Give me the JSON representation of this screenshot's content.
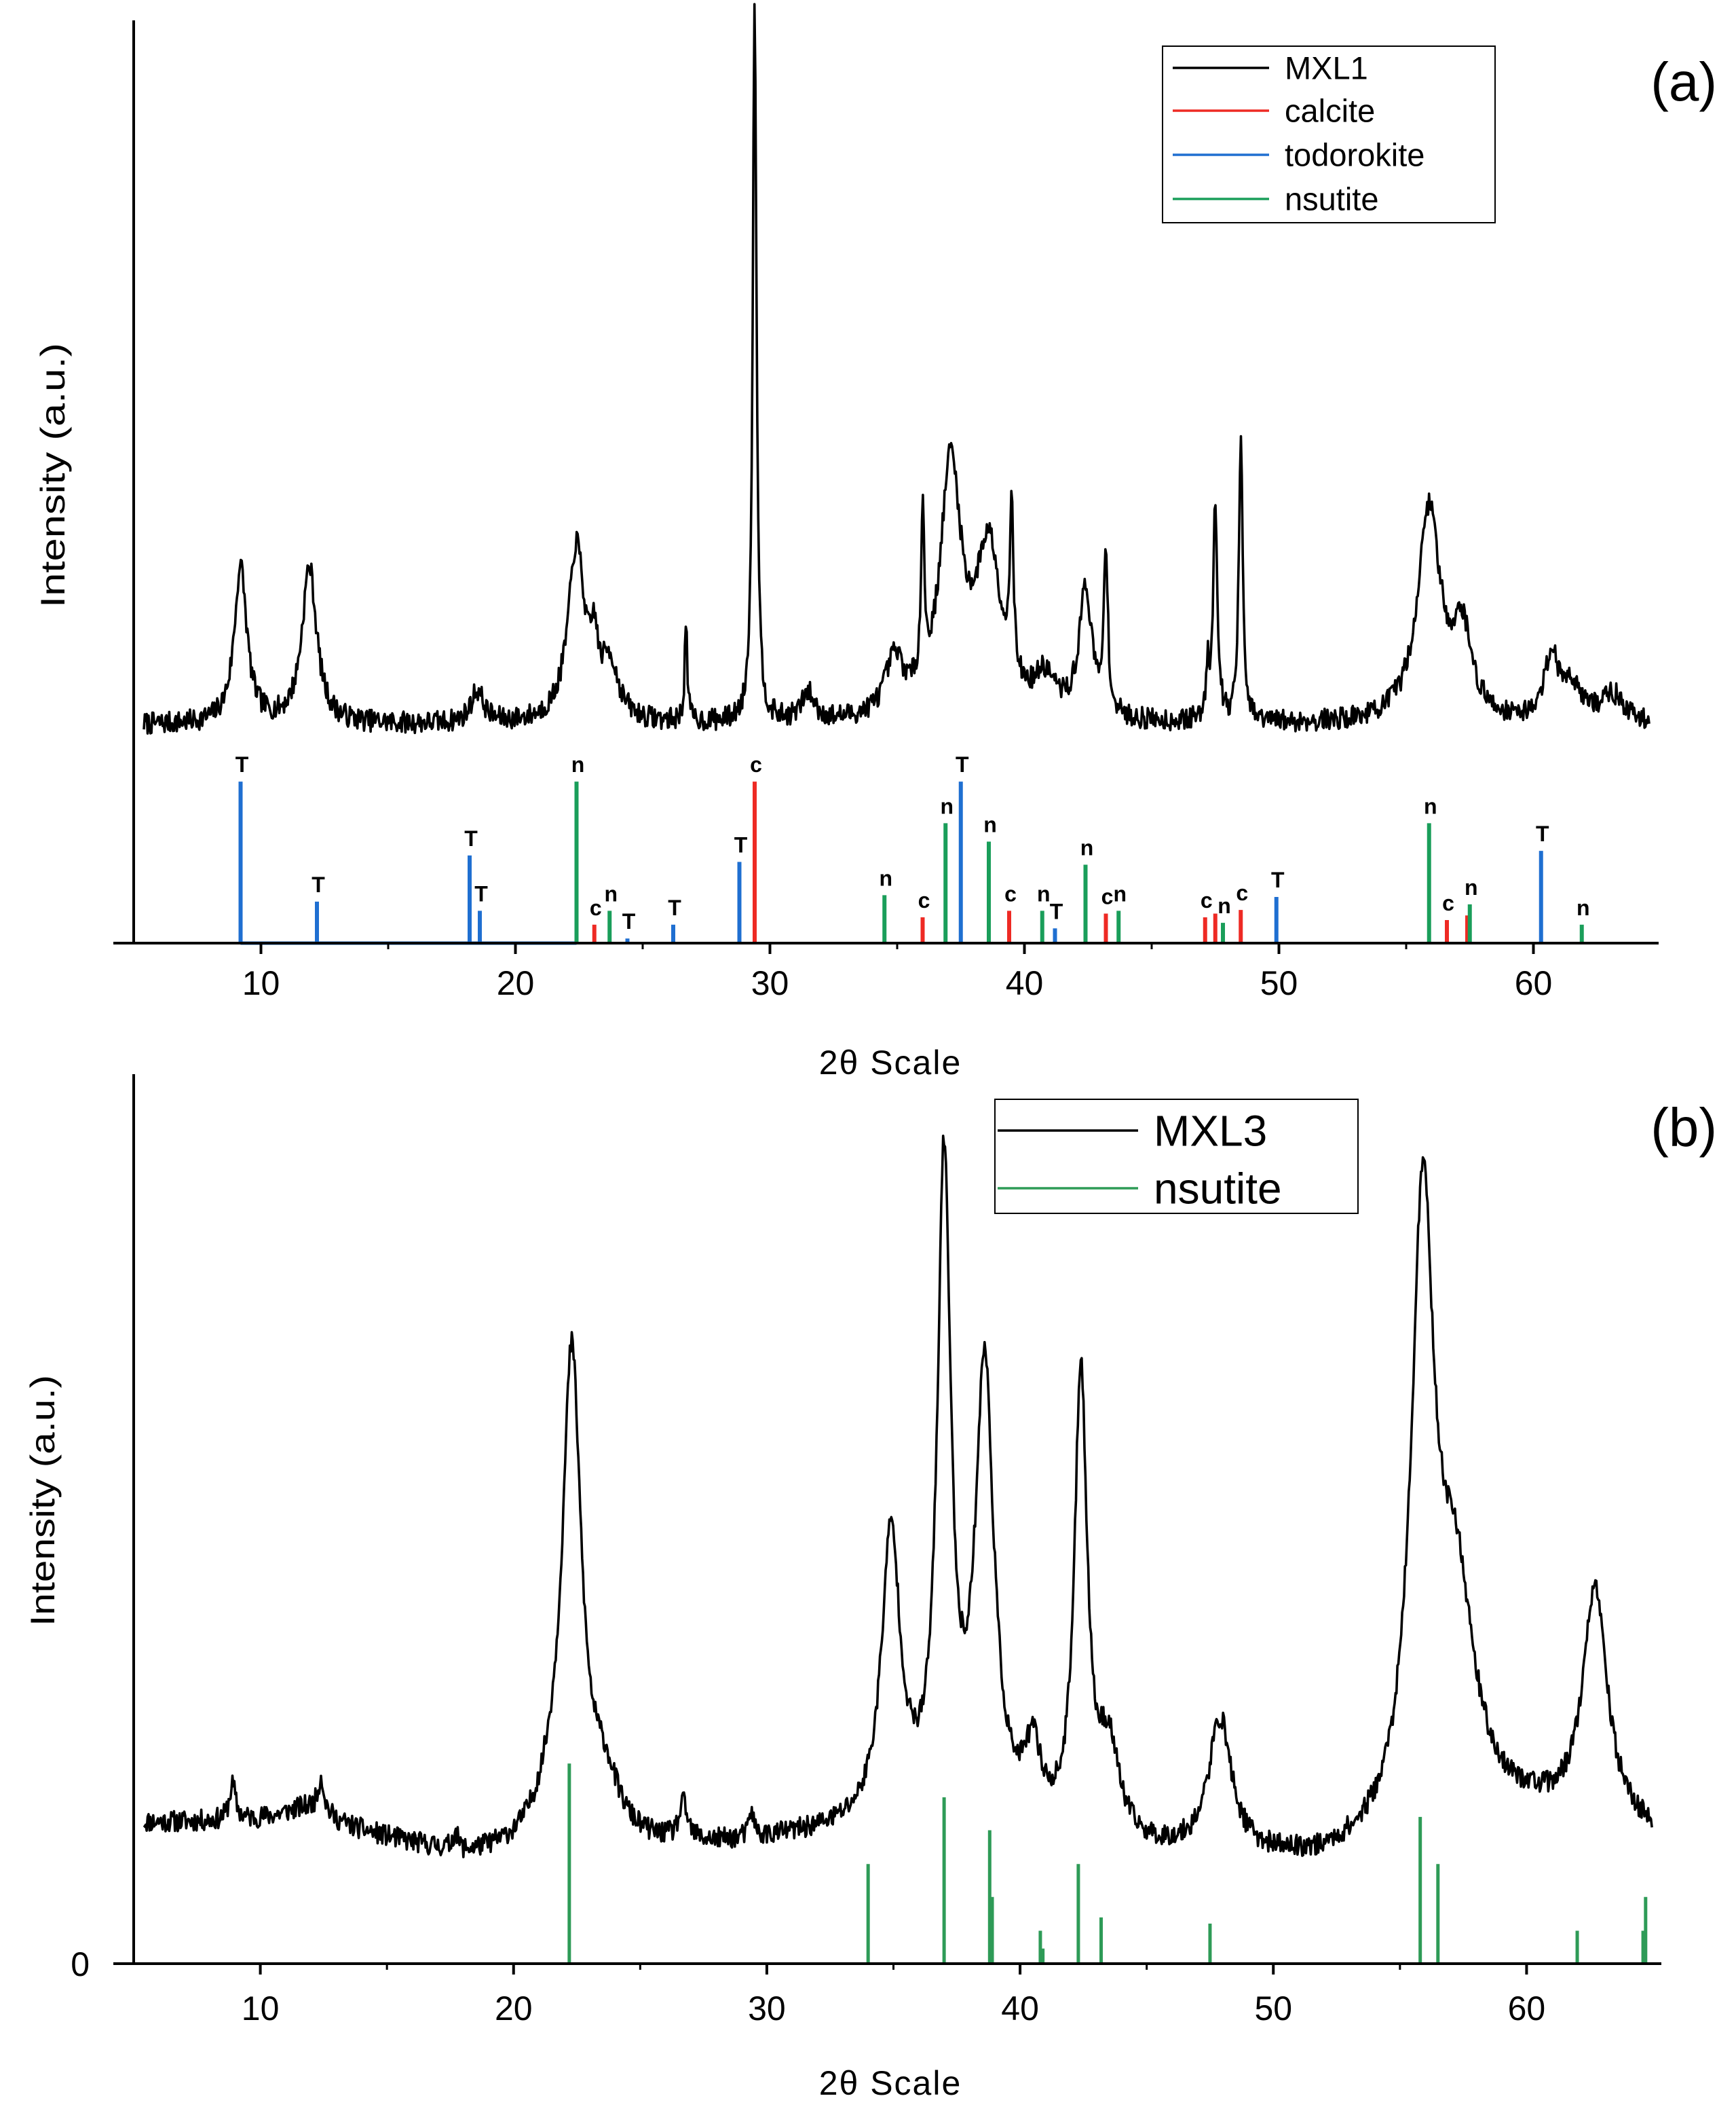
{
  "chart_data": [
    {
      "type": "line",
      "panel_label": "(a)",
      "xlabel": "2θ Scale",
      "ylabel": "Intensity (a.u.)",
      "xlim": [
        5,
        64.6
      ],
      "x_ticks": [
        10,
        20,
        30,
        40,
        50,
        60
      ],
      "ylim": [
        0,
        1
      ],
      "colors": {
        "MXL1": "#000000",
        "calcite": "#ee2a24",
        "todorokite": "#1f6fd1",
        "nsutite": "#1a9e5a"
      },
      "legend": {
        "position": "top-right",
        "entries": [
          "MXL1",
          "calcite",
          "todorokite",
          "nsutite"
        ]
      },
      "series": [
        {
          "name": "MXL1",
          "style": "pattern",
          "baseline": 0.236,
          "noise": 0.012,
          "peaks": [
            {
              "x": 9.2,
              "h": 0.17,
              "w": 0.3
            },
            {
              "x": 11.9,
              "h": 0.17,
              "w": 0.35
            },
            {
              "x": 18.5,
              "h": 0.035,
              "w": 0.3
            },
            {
              "x": 22.4,
              "h": 0.19,
              "w": 0.4
            },
            {
              "x": 23.1,
              "h": 0.06,
              "w": 0.15
            },
            {
              "x": 23.7,
              "h": 0.06,
              "w": 0.4
            },
            {
              "x": 26.7,
              "h": 0.11,
              "w": 0.06
            },
            {
              "x": 29.4,
              "h": 0.78,
              "w": 0.09
            },
            {
              "x": 31.5,
              "h": 0.03,
              "w": 0.3
            },
            {
              "x": 34.9,
              "h": 0.06,
              "w": 0.45
            },
            {
              "x": 36.0,
              "h": 0.18,
              "w": 0.08
            },
            {
              "x": 37.1,
              "h": 0.27,
              "w": 0.5
            },
            {
              "x": 38.6,
              "h": 0.18,
              "w": 0.6
            },
            {
              "x": 39.5,
              "h": 0.19,
              "w": 0.08
            },
            {
              "x": 40.8,
              "h": 0.04,
              "w": 0.5
            },
            {
              "x": 42.4,
              "h": 0.14,
              "w": 0.3
            },
            {
              "x": 43.2,
              "h": 0.18,
              "w": 0.09
            },
            {
              "x": 47.2,
              "h": 0.05,
              "w": 0.08
            },
            {
              "x": 47.5,
              "h": 0.24,
              "w": 0.1
            },
            {
              "x": 48.5,
              "h": 0.31,
              "w": 0.09
            },
            {
              "x": 55.9,
              "h": 0.23,
              "w": 0.55
            },
            {
              "x": 57.2,
              "h": 0.09,
              "w": 0.45
            },
            {
              "x": 60.7,
              "h": 0.07,
              "w": 0.3
            },
            {
              "x": 61.5,
              "h": 0.04,
              "w": 0.5
            },
            {
              "x": 63.1,
              "h": 0.03,
              "w": 0.5
            }
          ]
        },
        {
          "name": "calcite",
          "style": "sticks",
          "sticks": [
            {
              "x": 23.1,
              "h": 0.02,
              "label": "c"
            },
            {
              "x": 29.4,
              "h": 0.175,
              "label": "c"
            },
            {
              "x": 36.0,
              "h": 0.028,
              "label": "c"
            },
            {
              "x": 39.4,
              "h": 0.035,
              "label": "c"
            },
            {
              "x": 43.2,
              "h": 0.032,
              "label": "c"
            },
            {
              "x": 47.1,
              "h": 0.028,
              "label": "c"
            },
            {
              "x": 47.5,
              "h": 0.032,
              "label": ""
            },
            {
              "x": 48.5,
              "h": 0.036,
              "label": "c"
            },
            {
              "x": 56.6,
              "h": 0.025,
              "label": "c"
            },
            {
              "x": 57.4,
              "h": 0.03,
              "label": ""
            }
          ]
        },
        {
          "name": "todorokite",
          "style": "sticks",
          "sticks": [
            {
              "x": 9.2,
              "h": 0.175,
              "label": "T"
            },
            {
              "x": 12.2,
              "h": 0.045,
              "label": "T"
            },
            {
              "x": 18.2,
              "h": 0.095,
              "label": "T"
            },
            {
              "x": 18.6,
              "h": 0.035,
              "label": "T"
            },
            {
              "x": 24.4,
              "h": 0.005,
              "label": "T"
            },
            {
              "x": 26.2,
              "h": 0.02,
              "label": "T"
            },
            {
              "x": 28.8,
              "h": 0.088,
              "label": "T"
            },
            {
              "x": 37.5,
              "h": 0.175,
              "label": "T"
            },
            {
              "x": 41.2,
              "h": 0.016,
              "label": "T"
            },
            {
              "x": 49.9,
              "h": 0.05,
              "label": "T"
            },
            {
              "x": 60.3,
              "h": 0.1,
              "label": "T"
            }
          ]
        },
        {
          "name": "nsutite",
          "style": "sticks",
          "sticks": [
            {
              "x": 22.4,
              "h": 0.175,
              "label": "n"
            },
            {
              "x": 23.7,
              "h": 0.035,
              "label": "n"
            },
            {
              "x": 34.5,
              "h": 0.052,
              "label": "n"
            },
            {
              "x": 36.9,
              "h": 0.13,
              "label": "n"
            },
            {
              "x": 38.6,
              "h": 0.11,
              "label": "n"
            },
            {
              "x": 40.7,
              "h": 0.035,
              "label": "n"
            },
            {
              "x": 42.4,
              "h": 0.085,
              "label": "n"
            },
            {
              "x": 43.7,
              "h": 0.035,
              "label": "n"
            },
            {
              "x": 47.8,
              "h": 0.022,
              "label": "n"
            },
            {
              "x": 55.9,
              "h": 0.13,
              "label": "n"
            },
            {
              "x": 57.5,
              "h": 0.042,
              "label": "n"
            },
            {
              "x": 61.9,
              "h": 0.02,
              "label": "n"
            }
          ]
        }
      ]
    },
    {
      "type": "line",
      "panel_label": "(b)",
      "xlabel": "2θ Scale",
      "ylabel": "Intensity (a.u.)",
      "xlim": [
        5,
        65
      ],
      "x_ticks": [
        10,
        20,
        30,
        40,
        50,
        60
      ],
      "y_ticks": [
        0
      ],
      "ylim": [
        0,
        1
      ],
      "colors": {
        "MXL3": "#000000",
        "nsutite": "#2e9b57"
      },
      "legend": {
        "position": "top-right",
        "entries": [
          "MXL3",
          "nsutite"
        ]
      },
      "series": [
        {
          "name": "MXL3",
          "style": "pattern",
          "baseline": 0.145,
          "noise": 0.012,
          "slope": [
            {
              "x": 5,
              "y": 0.158
            },
            {
              "x": 12,
              "y": 0.158
            },
            {
              "x": 18,
              "y": 0.118
            },
            {
              "x": 28,
              "y": 0.13
            },
            {
              "x": 35,
              "y": 0.15
            },
            {
              "x": 45,
              "y": 0.12
            },
            {
              "x": 52,
              "y": 0.11
            },
            {
              "x": 60,
              "y": 0.16
            },
            {
              "x": 65,
              "y": 0.14
            }
          ],
          "peaks": [
            {
              "x": 8.9,
              "h": 0.04,
              "w": 0.15
            },
            {
              "x": 11.8,
              "h": 0.015,
              "w": 1.2
            },
            {
              "x": 12.4,
              "h": 0.04,
              "w": 0.15
            },
            {
              "x": 17.7,
              "h": 0.02,
              "w": 0.12
            },
            {
              "x": 21.5,
              "h": 0.04,
              "w": 0.8
            },
            {
              "x": 22.3,
              "h": 0.54,
              "w": 0.45
            },
            {
              "x": 23.6,
              "h": 0.06,
              "w": 0.7
            },
            {
              "x": 26.7,
              "h": 0.04,
              "w": 0.2
            },
            {
              "x": 29.4,
              "h": 0.03,
              "w": 0.1
            },
            {
              "x": 34.9,
              "h": 0.32,
              "w": 0.45
            },
            {
              "x": 37.0,
              "h": 0.73,
              "w": 0.32
            },
            {
              "x": 38.6,
              "h": 0.51,
              "w": 0.45
            },
            {
              "x": 40.5,
              "h": 0.08,
              "w": 0.4
            },
            {
              "x": 42.4,
              "h": 0.52,
              "w": 0.3
            },
            {
              "x": 43.5,
              "h": 0.1,
              "w": 0.5
            },
            {
              "x": 47.9,
              "h": 0.15,
              "w": 0.55
            },
            {
              "x": 55.9,
              "h": 0.68,
              "w": 0.55
            },
            {
              "x": 57.2,
              "h": 0.25,
              "w": 0.9
            },
            {
              "x": 62.7,
              "h": 0.26,
              "w": 0.6
            }
          ]
        },
        {
          "name": "nsutite",
          "style": "sticks",
          "sticks": [
            {
              "x": 22.2,
              "h": 0.225
            },
            {
              "x": 34.0,
              "h": 0.112
            },
            {
              "x": 37.0,
              "h": 0.187
            },
            {
              "x": 38.8,
              "h": 0.15
            },
            {
              "x": 38.9,
              "h": 0.075
            },
            {
              "x": 40.8,
              "h": 0.037
            },
            {
              "x": 40.9,
              "h": 0.017
            },
            {
              "x": 42.3,
              "h": 0.112
            },
            {
              "x": 43.2,
              "h": 0.052
            },
            {
              "x": 47.5,
              "h": 0.045
            },
            {
              "x": 55.8,
              "h": 0.165
            },
            {
              "x": 56.5,
              "h": 0.112
            },
            {
              "x": 62.0,
              "h": 0.037
            },
            {
              "x": 64.6,
              "h": 0.037
            },
            {
              "x": 64.7,
              "h": 0.075
            }
          ]
        }
      ]
    }
  ]
}
